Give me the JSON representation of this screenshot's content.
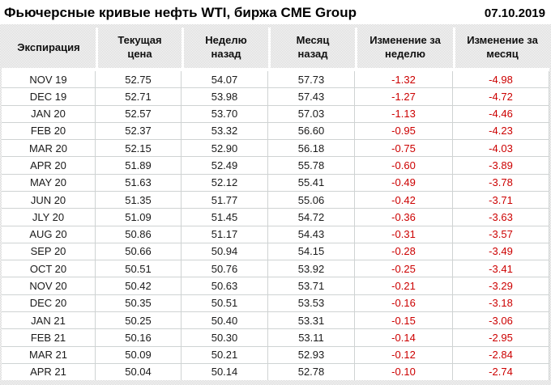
{
  "title_bar": {
    "title": "Фьючерсные кривые нефть WTI, биржа CME Group",
    "date": "07.10.2019"
  },
  "table": {
    "columns": [
      "Экспирация",
      "Текущая\nцена",
      "Неделю\nназад",
      "Месяц\nназад",
      "Изменение за\nнеделю",
      "Изменение за\nмесяц"
    ],
    "rows": [
      [
        "NOV 19",
        "52.75",
        "54.07",
        "57.73",
        "-1.32",
        "-4.98"
      ],
      [
        "DEC 19",
        "52.71",
        "53.98",
        "57.43",
        "-1.27",
        "-4.72"
      ],
      [
        "JAN 20",
        "52.57",
        "53.70",
        "57.03",
        "-1.13",
        "-4.46"
      ],
      [
        "FEB 20",
        "52.37",
        "53.32",
        "56.60",
        "-0.95",
        "-4.23"
      ],
      [
        "MAR 20",
        "52.15",
        "52.90",
        "56.18",
        "-0.75",
        "-4.03"
      ],
      [
        "APR 20",
        "51.89",
        "52.49",
        "55.78",
        "-0.60",
        "-3.89"
      ],
      [
        "MAY 20",
        "51.63",
        "52.12",
        "55.41",
        "-0.49",
        "-3.78"
      ],
      [
        "JUN 20",
        "51.35",
        "51.77",
        "55.06",
        "-0.42",
        "-3.71"
      ],
      [
        "JLY 20",
        "51.09",
        "51.45",
        "54.72",
        "-0.36",
        "-3.63"
      ],
      [
        "AUG 20",
        "50.86",
        "51.17",
        "54.43",
        "-0.31",
        "-3.57"
      ],
      [
        "SEP 20",
        "50.66",
        "50.94",
        "54.15",
        "-0.28",
        "-3.49"
      ],
      [
        "OCT 20",
        "50.51",
        "50.76",
        "53.92",
        "-0.25",
        "-3.41"
      ],
      [
        "NOV 20",
        "50.42",
        "50.63",
        "53.71",
        "-0.21",
        "-3.29"
      ],
      [
        "DEC 20",
        "50.35",
        "50.51",
        "53.53",
        "-0.16",
        "-3.18"
      ],
      [
        "JAN 21",
        "50.25",
        "50.40",
        "53.31",
        "-0.15",
        "-3.06"
      ],
      [
        "FEB 21",
        "50.16",
        "50.30",
        "53.11",
        "-0.14",
        "-2.95"
      ],
      [
        "MAR 21",
        "50.09",
        "50.21",
        "52.93",
        "-0.12",
        "-2.84"
      ],
      [
        "APR 21",
        "50.04",
        "50.14",
        "52.78",
        "-0.10",
        "-2.74"
      ]
    ]
  },
  "colors": {
    "negative_value": "#cc0000",
    "text": "#1a1a1a",
    "header_texture": "#d4d4d4",
    "grid_line": "#cfd3d3"
  }
}
